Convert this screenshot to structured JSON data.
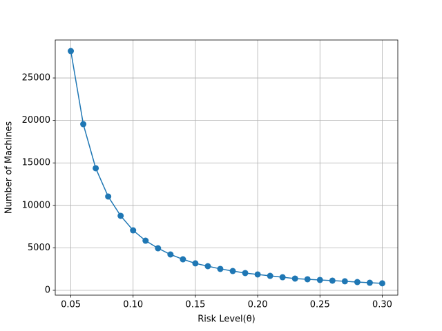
{
  "chart_data": {
    "type": "line",
    "x": [
      0.05,
      0.06,
      0.07,
      0.08,
      0.09,
      0.1,
      0.11,
      0.12,
      0.13,
      0.14,
      0.15,
      0.16,
      0.17,
      0.18,
      0.19,
      0.2,
      0.21,
      0.22,
      0.23,
      0.24,
      0.25,
      0.26,
      0.27,
      0.28,
      0.29,
      0.3
    ],
    "series": [
      {
        "color": "#1f77b4",
        "values": [
          28166,
          19560,
          14370,
          11040,
          8770,
          7060,
          5840,
          4950,
          4220,
          3650,
          3170,
          2840,
          2520,
          2270,
          2030,
          1870,
          1700,
          1540,
          1380,
          1300,
          1220,
          1140,
          1060,
          970,
          890,
          820
        ]
      }
    ],
    "xlabel": "Risk Level(θ)",
    "ylabel": "Number of Machines",
    "xlim": [
      0.0375,
      0.3125
    ],
    "ylim": [
      -570,
      29470
    ],
    "xticks": [
      0.05,
      {
        "value": 0.1,
        "label": "0.10"
      },
      0.15,
      {
        "value": 0.2,
        "label": "0.20"
      },
      0.25,
      {
        "value": 0.3,
        "label": "0.30"
      }
    ],
    "yticks": [
      0,
      5000,
      10000,
      15000,
      20000,
      25000
    ],
    "grid": true
  }
}
